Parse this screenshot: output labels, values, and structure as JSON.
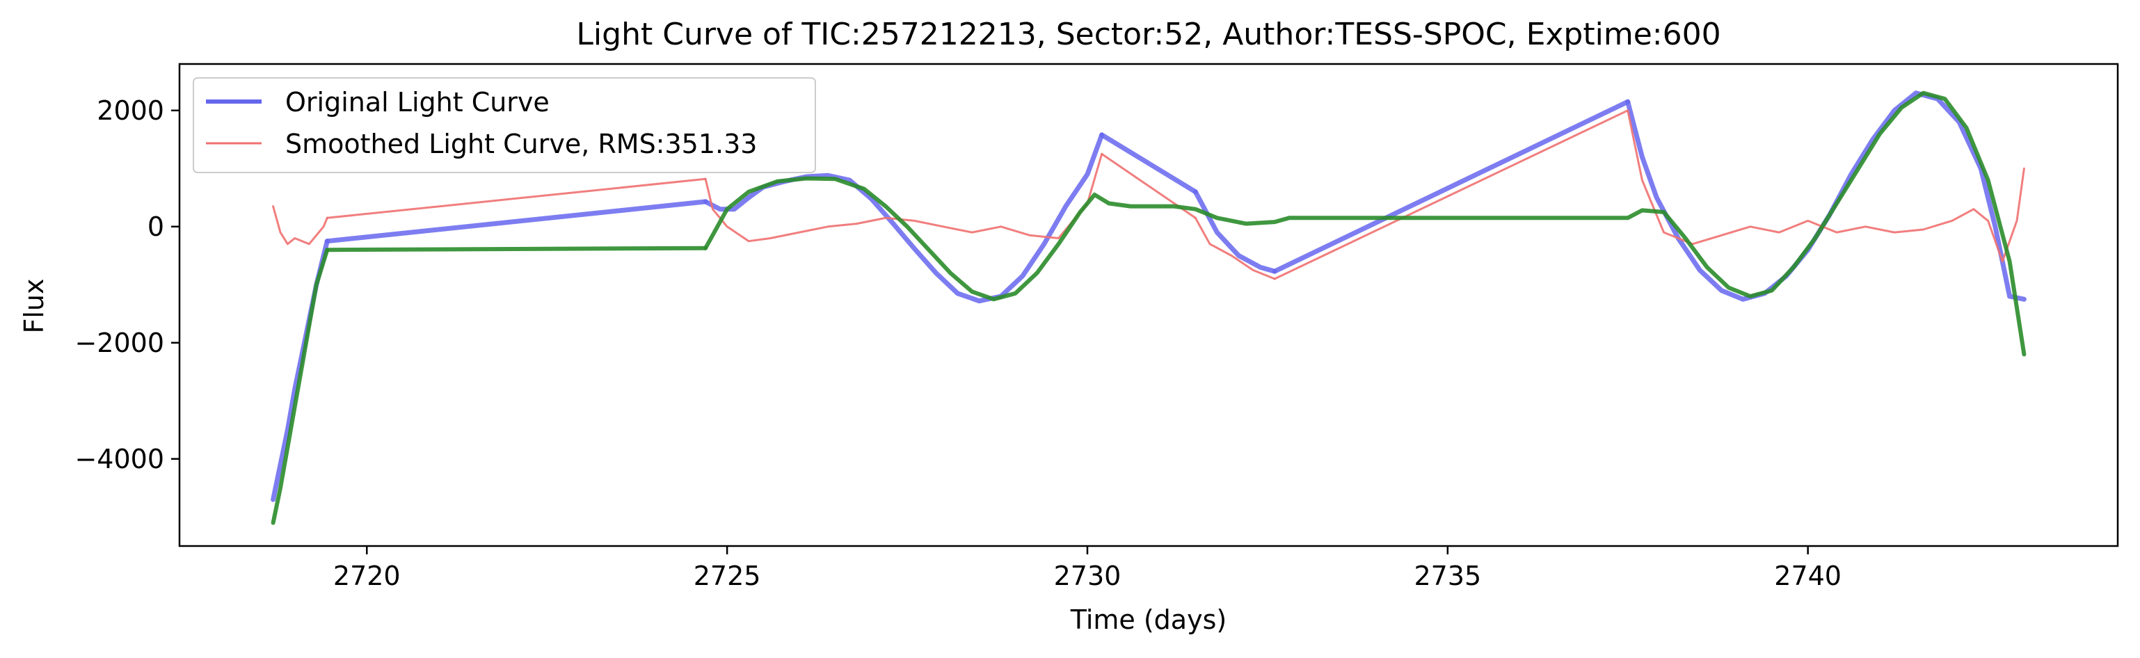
{
  "chart_data": {
    "type": "line",
    "title": "Light Curve of TIC:257212213, Sector:52, Author:TESS-SPOC, Exptime:600",
    "xlabel": "Time (days)",
    "ylabel": "Flux",
    "xlim": [
      2717.4,
      2744.3
    ],
    "ylim": [
      -5500,
      2800
    ],
    "xticks": [
      2720,
      2725,
      2730,
      2735,
      2740
    ],
    "yticks": [
      -4000,
      -2000,
      0,
      2000
    ],
    "grid": false,
    "legend_position": "top-left",
    "series": [
      {
        "name": "Original Light Curve",
        "color": "#6666ee",
        "segments": [
          {
            "x": [
              2718.7,
              2718.8,
              2718.9,
              2719.0,
              2719.1,
              2719.2,
              2719.3,
              2719.4,
              2719.45
            ],
            "y": [
              -4700,
              -4100,
              -3500,
              -2800,
              -2200,
              -1600,
              -1000,
              -500,
              -250
            ]
          },
          {
            "x": [
              2719.45,
              2724.7
            ],
            "y": [
              -250,
              430
            ]
          },
          {
            "x": [
              2724.7,
              2724.9,
              2725.1,
              2725.3,
              2725.5,
              2725.8,
              2726.1,
              2726.4,
              2726.7,
              2727.0,
              2727.3,
              2727.6,
              2727.9,
              2728.2,
              2728.5,
              2728.8,
              2729.1,
              2729.4,
              2729.7,
              2730.0,
              2730.2
            ],
            "y": [
              430,
              300,
              300,
              500,
              680,
              780,
              860,
              880,
              800,
              480,
              60,
              -380,
              -800,
              -1150,
              -1280,
              -1200,
              -850,
              -300,
              350,
              900,
              1580
            ]
          },
          {
            "x": [
              2730.2,
              2731.5
            ],
            "y": [
              1580,
              600
            ]
          },
          {
            "x": [
              2731.5,
              2731.8,
              2732.1,
              2732.4,
              2732.6
            ],
            "y": [
              600,
              -100,
              -500,
              -700,
              -770
            ]
          },
          {
            "x": [
              2732.6,
              2737.5
            ],
            "y": [
              -770,
              2150
            ]
          },
          {
            "x": [
              2737.5,
              2737.7,
              2737.9,
              2738.2,
              2738.5,
              2738.8,
              2739.1,
              2739.4,
              2739.7,
              2740.0,
              2740.3,
              2740.6,
              2740.9,
              2741.2,
              2741.5,
              2741.8,
              2742.1,
              2742.4,
              2742.6,
              2742.8,
              2743.0
            ],
            "y": [
              2150,
              1200,
              500,
              -200,
              -750,
              -1100,
              -1250,
              -1150,
              -850,
              -400,
              200,
              900,
              1500,
              2000,
              2300,
              2200,
              1800,
              1000,
              0,
              -1200,
              -1250
            ]
          }
        ]
      },
      {
        "name": "Smoothed Light Curve, RMS:351.33",
        "color": "#f07070",
        "segments": [
          {
            "x": [
              2718.7,
              2718.8,
              2718.9,
              2719.0,
              2719.2,
              2719.4,
              2719.45
            ],
            "y": [
              350,
              -100,
              -300,
              -200,
              -300,
              0,
              150
            ]
          },
          {
            "x": [
              2719.45,
              2724.7
            ],
            "y": [
              150,
              820
            ]
          },
          {
            "x": [
              2724.7,
              2724.8,
              2725.0,
              2725.3,
              2725.6,
              2726.0,
              2726.4,
              2726.8,
              2727.2,
              2727.6,
              2728.0,
              2728.4,
              2728.8,
              2729.2,
              2729.6,
              2730.0,
              2730.2
            ],
            "y": [
              820,
              300,
              0,
              -250,
              -200,
              -100,
              0,
              50,
              150,
              100,
              0,
              -100,
              0,
              -150,
              -200,
              400,
              1250
            ]
          },
          {
            "x": [
              2730.2,
              2731.5
            ],
            "y": [
              1250,
              150
            ]
          },
          {
            "x": [
              2731.5,
              2731.7,
              2732.0,
              2732.3,
              2732.6
            ],
            "y": [
              150,
              -300,
              -500,
              -750,
              -900
            ]
          },
          {
            "x": [
              2732.6,
              2737.5
            ],
            "y": [
              -900,
              2000
            ]
          },
          {
            "x": [
              2737.5,
              2737.7,
              2738.0,
              2738.4,
              2738.8,
              2739.2,
              2739.6,
              2740.0,
              2740.4,
              2740.8,
              2741.2,
              2741.6,
              2742.0,
              2742.3,
              2742.5,
              2742.7,
              2742.9,
              2743.0
            ],
            "y": [
              2000,
              800,
              -100,
              -300,
              -150,
              0,
              -100,
              100,
              -100,
              0,
              -100,
              -50,
              100,
              300,
              100,
              -600,
              100,
              1000
            ]
          }
        ]
      },
      {
        "name": "",
        "color": "#2a8c2a",
        "segments": [
          {
            "x": [
              2718.7,
              2718.8,
              2718.9,
              2719.0,
              2719.1,
              2719.2,
              2719.3,
              2719.45
            ],
            "y": [
              -5100,
              -4500,
              -3800,
              -3100,
              -2400,
              -1700,
              -1000,
              -400
            ]
          },
          {
            "x": [
              2719.45,
              2724.7
            ],
            "y": [
              -400,
              -370
            ]
          },
          {
            "x": [
              2724.7,
              2725.0,
              2725.3,
              2725.7,
              2726.1,
              2726.5,
              2726.9,
              2727.2,
              2727.5,
              2727.8,
              2728.1,
              2728.4,
              2728.7,
              2729.0,
              2729.3,
              2729.6,
              2729.9,
              2730.1,
              2730.3,
              2730.6,
              2731.2,
              2731.5,
              2731.8,
              2732.2,
              2732.6,
              2732.8,
              2733.0,
              2737.5,
              2737.7,
              2738.0,
              2738.3,
              2738.6,
              2738.9,
              2739.2,
              2739.5,
              2739.8,
              2740.1,
              2740.4,
              2740.7,
              2741.0,
              2741.3,
              2741.6,
              2741.9,
              2742.2,
              2742.5,
              2742.8,
              2743.0
            ],
            "y": [
              -370,
              300,
              600,
              780,
              830,
              820,
              650,
              350,
              0,
              -400,
              -800,
              -1120,
              -1250,
              -1150,
              -800,
              -300,
              250,
              550,
              400,
              350,
              350,
              300,
              150,
              50,
              80,
              150,
              150,
              150,
              280,
              250,
              -200,
              -700,
              -1050,
              -1200,
              -1100,
              -700,
              -200,
              400,
              1000,
              1600,
              2050,
              2300,
              2200,
              1700,
              800,
              -600,
              -2200
            ]
          }
        ]
      }
    ]
  }
}
